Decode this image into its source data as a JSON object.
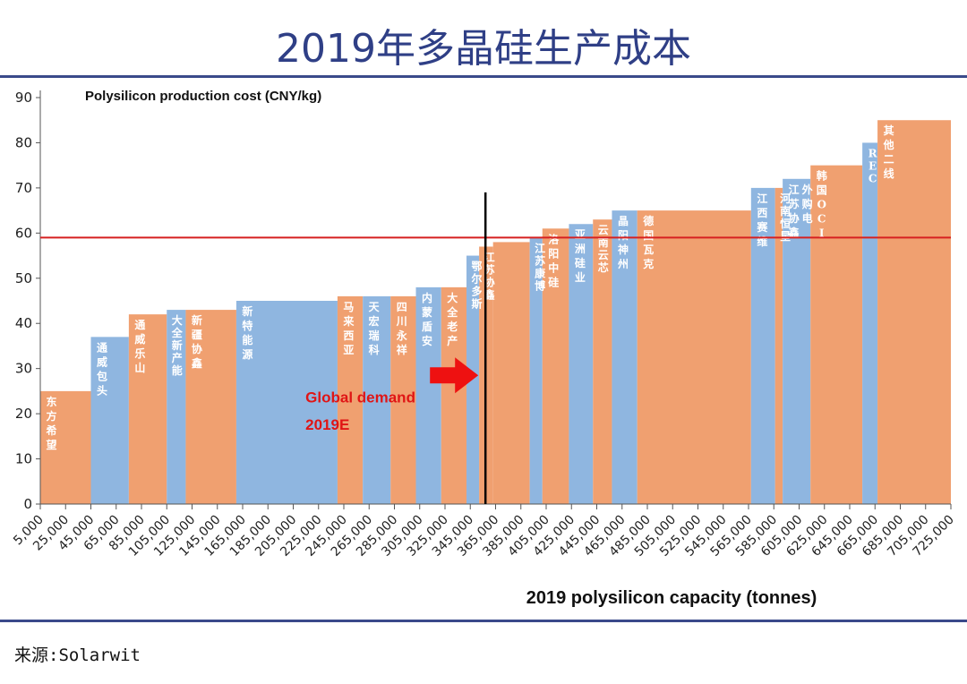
{
  "page": {
    "title": "2019年多晶硅生产成本",
    "source": "来源:Solarwit"
  },
  "chart_data": {
    "type": "bar",
    "variant": "cost-curve",
    "title": "Polysilicon production cost (CNY/kg)",
    "xlabel": "2019 polysilicon capacity (tonnes)",
    "ylabel": "",
    "ylim": [
      0,
      90
    ],
    "xlim": [
      5000,
      725000
    ],
    "yticks": [
      0,
      10,
      20,
      30,
      40,
      50,
      60,
      70,
      80,
      90
    ],
    "xticks": [
      "5,000",
      "25,000",
      "45,000",
      "65,000",
      "85,000",
      "105,000",
      "125,000",
      "145,000",
      "165,000",
      "185,000",
      "205,000",
      "225,000",
      "245,000",
      "265,000",
      "285,000",
      "305,000",
      "325,000",
      "345,000",
      "365,000",
      "385,000",
      "405,000",
      "425,000",
      "445,000",
      "465,000",
      "485,000",
      "505,000",
      "525,000",
      "545,000",
      "565,000",
      "585,000",
      "605,000",
      "625,000",
      "645,000",
      "665,000",
      "685,000",
      "705,000",
      "725,000"
    ],
    "series": [
      {
        "name": "东方希望",
        "start": 5000,
        "end": 45000,
        "value": 25,
        "color": "#f0a070"
      },
      {
        "name": "通威包头",
        "start": 45000,
        "end": 75000,
        "value": 37,
        "color": "#8fb6e0"
      },
      {
        "name": "通威乐山",
        "start": 75000,
        "end": 105000,
        "value": 42,
        "color": "#f0a070"
      },
      {
        "name": "大全新产能",
        "start": 105000,
        "end": 120000,
        "value": 43,
        "color": "#8fb6e0"
      },
      {
        "name": "新疆协鑫",
        "start": 120000,
        "end": 160000,
        "value": 43,
        "color": "#f0a070"
      },
      {
        "name": "新特能源",
        "start": 160000,
        "end": 240000,
        "value": 45,
        "color": "#8fb6e0"
      },
      {
        "name": "马来西亚",
        "start": 240000,
        "end": 260000,
        "value": 46,
        "color": "#f0a070"
      },
      {
        "name": "天宏瑞科",
        "start": 260000,
        "end": 282000,
        "value": 46,
        "color": "#8fb6e0"
      },
      {
        "name": "四川永祥",
        "start": 282000,
        "end": 302000,
        "value": 46,
        "color": "#f0a070"
      },
      {
        "name": "内蒙盾安",
        "start": 302000,
        "end": 322000,
        "value": 48,
        "color": "#8fb6e0"
      },
      {
        "name": "大全老产",
        "start": 322000,
        "end": 342000,
        "value": 48,
        "color": "#f0a070"
      },
      {
        "name": "鄂尔多斯",
        "start": 342000,
        "end": 352000,
        "value": 55,
        "color": "#8fb6e0"
      },
      {
        "name": "江苏协鑫",
        "start": 352000,
        "end": 363000,
        "value": 57,
        "color": "#f0a070"
      },
      {
        "name": "",
        "start": 363000,
        "end": 392000,
        "value": 58,
        "color": "#f0a070"
      },
      {
        "name": "江苏康博",
        "start": 392000,
        "end": 402000,
        "value": 59,
        "color": "#8fb6e0"
      },
      {
        "name": "洛阳中硅",
        "start": 402000,
        "end": 423000,
        "value": 61,
        "color": "#f0a070"
      },
      {
        "name": "亚洲硅业",
        "start": 423000,
        "end": 442000,
        "value": 62,
        "color": "#8fb6e0"
      },
      {
        "name": "云南云芯",
        "start": 442000,
        "end": 457000,
        "value": 63,
        "color": "#f0a070"
      },
      {
        "name": "晶阳神州",
        "start": 457000,
        "end": 477000,
        "value": 65,
        "color": "#8fb6e0"
      },
      {
        "name": "德国瓦克",
        "start": 477000,
        "end": 567000,
        "value": 65,
        "color": "#f0a070"
      },
      {
        "name": "江西赛维",
        "start": 567000,
        "end": 586000,
        "value": 70,
        "color": "#8fb6e0"
      },
      {
        "name": "河南恒星",
        "start": 586000,
        "end": 592000,
        "value": 70,
        "color": "#f0a070"
      },
      {
        "name": "江苏协鑫外购电",
        "start": 592000,
        "end": 614000,
        "value": 72,
        "color": "#8fb6e0"
      },
      {
        "name": "韩国OCI",
        "start": 614000,
        "end": 655000,
        "value": 75,
        "color": "#f0a070"
      },
      {
        "name": "REC",
        "start": 655000,
        "end": 667000,
        "value": 80,
        "color": "#8fb6e0"
      },
      {
        "name": "其他二线",
        "start": 667000,
        "end": 725000,
        "value": 85,
        "color": "#f0a070"
      }
    ],
    "reference_line": {
      "value": 59,
      "color": "#d62020"
    },
    "demand_line": {
      "x": 357000,
      "top_value": 69,
      "color": "#000000"
    },
    "annotation": {
      "line1": "Global demand",
      "line2": "2019E",
      "color": "#e01515",
      "arrow_color": "#ee1111"
    }
  }
}
